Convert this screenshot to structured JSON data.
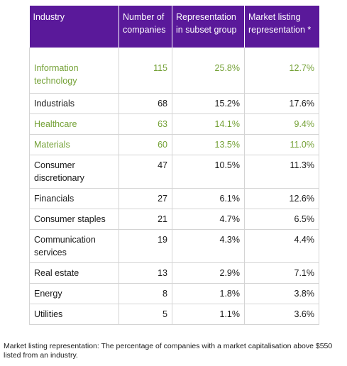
{
  "table": {
    "headers": [
      "Industry",
      "Number of companies",
      "Representation in subset group",
      "Market listing representation *"
    ],
    "rows": [
      {
        "industry": "Information technology",
        "count": "115",
        "subset": "25.8%",
        "market": "12.7%",
        "highlight": true
      },
      {
        "industry": "Industrials",
        "count": "68",
        "subset": "15.2%",
        "market": "17.6%",
        "highlight": false
      },
      {
        "industry": "Healthcare",
        "count": "63",
        "subset": "14.1%",
        "market": "9.4%",
        "highlight": true
      },
      {
        "industry": "Materials",
        "count": "60",
        "subset": "13.5%",
        "market": "11.0%",
        "highlight": true
      },
      {
        "industry": "Consumer discretionary",
        "count": "47",
        "subset": "10.5%",
        "market": "11.3%",
        "highlight": false
      },
      {
        "industry": "Financials",
        "count": "27",
        "subset": "6.1%",
        "market": "12.6%",
        "highlight": false
      },
      {
        "industry": "Consumer staples",
        "count": "21",
        "subset": "4.7%",
        "market": "6.5%",
        "highlight": false
      },
      {
        "industry": "Communication services",
        "count": "19",
        "subset": "4.3%",
        "market": "4.4%",
        "highlight": false
      },
      {
        "industry": "Real estate",
        "count": "13",
        "subset": "2.9%",
        "market": "7.1%",
        "highlight": false
      },
      {
        "industry": "Energy",
        "count": "8",
        "subset": "1.8%",
        "market": "3.8%",
        "highlight": false
      },
      {
        "industry": "Utilities",
        "count": "5",
        "subset": "1.1%",
        "market": "3.6%",
        "highlight": false
      }
    ]
  },
  "footnote": "Market listing representation: The percentage of companies with a market capitalisation above $550 listed from an industry.",
  "colors": {
    "header_bg": "#5a199a",
    "highlight_text": "#74a136"
  }
}
